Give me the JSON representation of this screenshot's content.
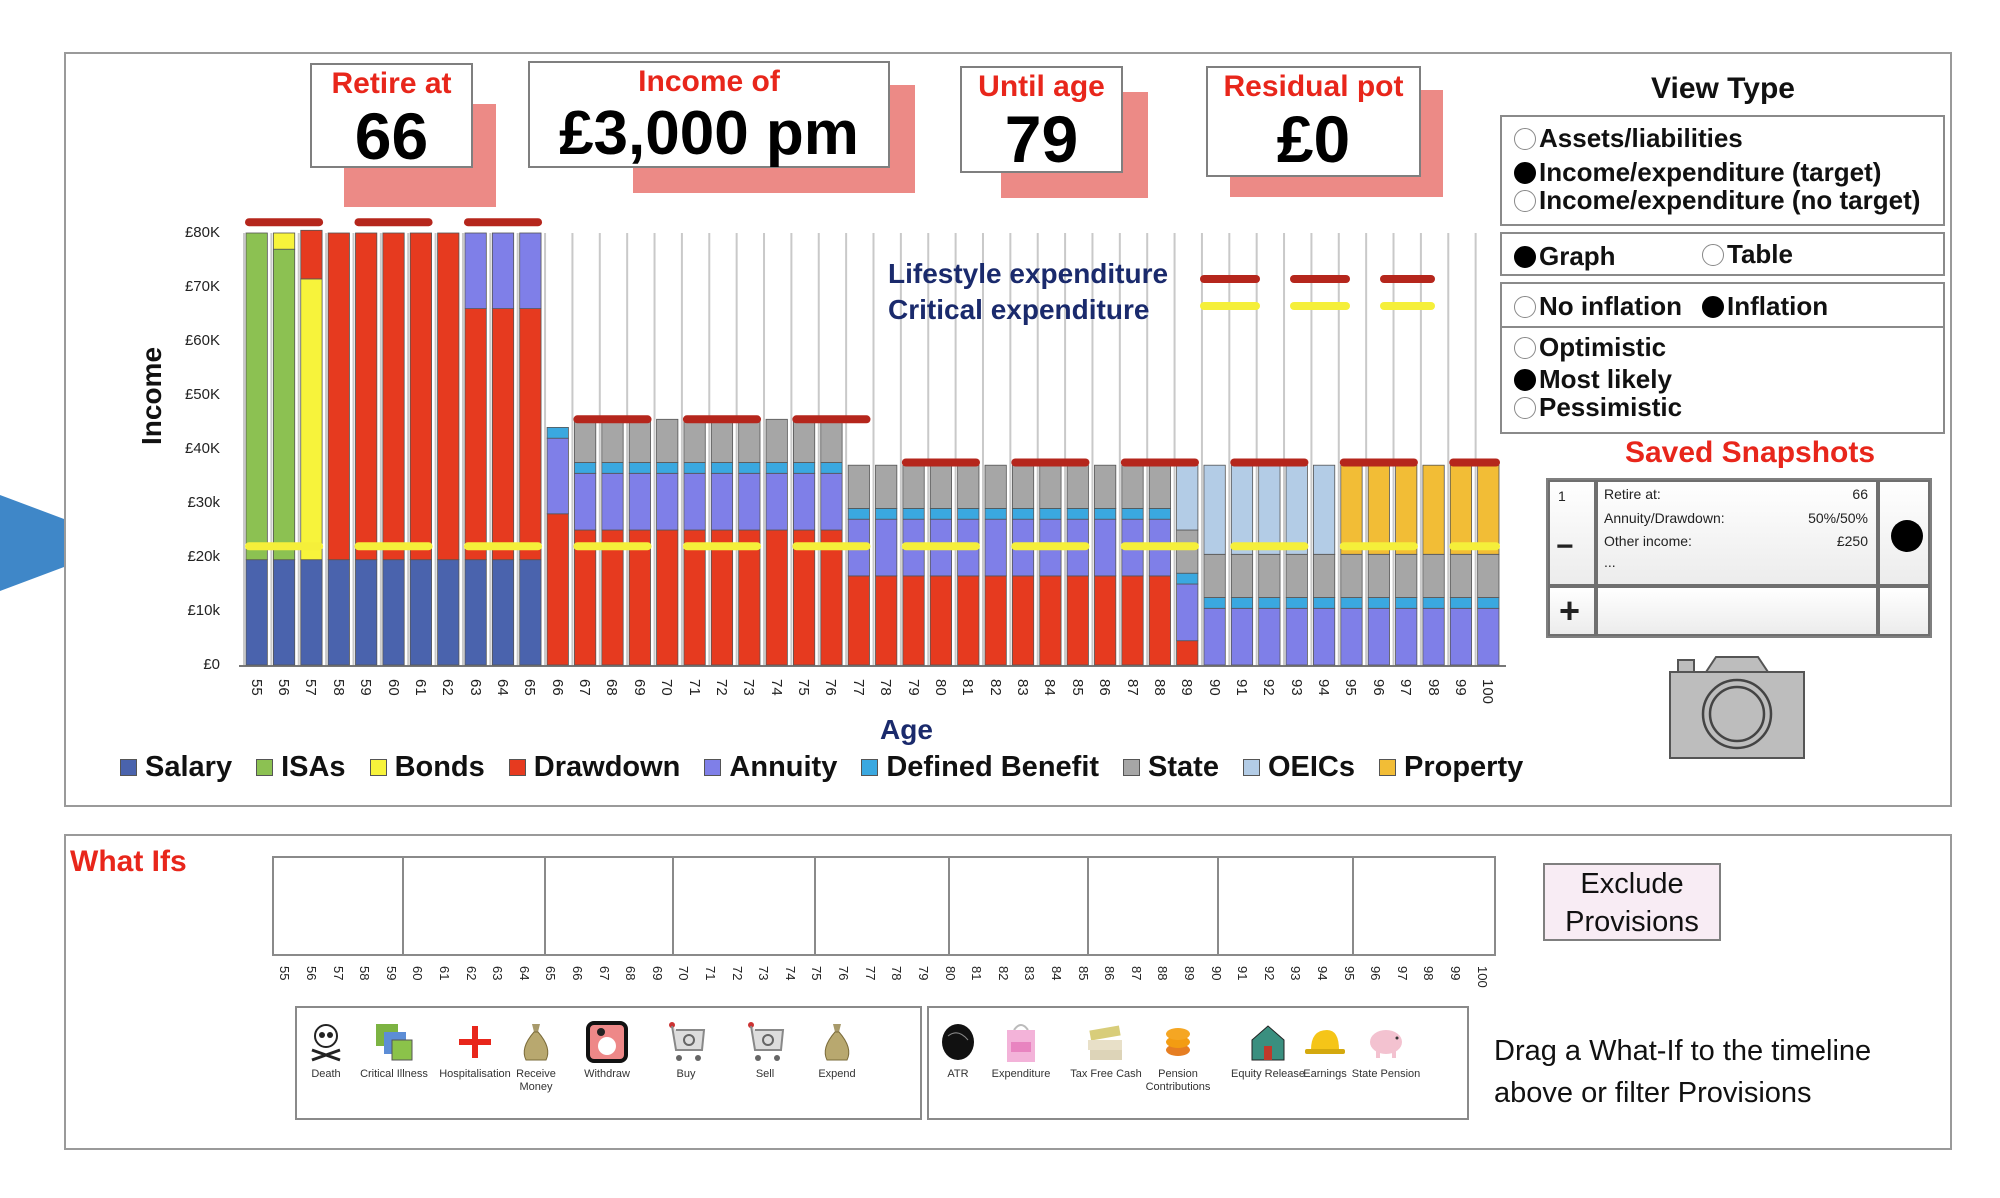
{
  "indicator_arrow": "pointer-arrow",
  "stats": {
    "retire_at": {
      "label": "Retire at",
      "value": "66"
    },
    "income_of": {
      "label": "Income of",
      "value": "£3,000 pm"
    },
    "until_age": {
      "label": "Until age",
      "value": "79"
    },
    "residual_pot": {
      "label": "Residual pot",
      "value": "£0"
    }
  },
  "view_type": {
    "title": "View Type",
    "mode": [
      {
        "label": "Assets/liabilities",
        "selected": false
      },
      {
        "label": "Income/expenditure (target)",
        "selected": true
      },
      {
        "label": "Income/expenditure (no target)",
        "selected": false
      }
    ],
    "display": [
      {
        "label": "Graph",
        "selected": true
      },
      {
        "label": "Table",
        "selected": false
      }
    ],
    "inflation": [
      {
        "label": "No inflation",
        "selected": false
      },
      {
        "label": "Inflation",
        "selected": true
      }
    ],
    "scenario": [
      {
        "label": "Optimistic",
        "selected": false
      },
      {
        "label": "Most likely",
        "selected": true
      },
      {
        "label": "Pessimistic",
        "selected": false
      }
    ]
  },
  "snapshots": {
    "title": "Saved Snapshots",
    "items": [
      {
        "index": "1",
        "remove_label": "−",
        "rows": [
          {
            "key": "Retire at:",
            "value": "66"
          },
          {
            "key": "Annuity/Drawdown:",
            "value": "50%/50%"
          },
          {
            "key": "Other income:",
            "value": "£250"
          }
        ],
        "more": "...",
        "selected": true
      }
    ],
    "add_label": "+",
    "camera_icon": "camera-icon"
  },
  "expenditure_legend": {
    "lifestyle": {
      "label": "Lifestyle expenditure",
      "color": "#b5261c"
    },
    "critical": {
      "label": "Critical expenditure",
      "color": "#f5ef3a"
    }
  },
  "chart_data": {
    "type": "bar",
    "stacked": true,
    "title": "",
    "xlabel": "Age",
    "ylabel": "Income",
    "ylim": [
      0,
      80000
    ],
    "yticks": [
      "£0",
      "£10k",
      "£20k",
      "£30k",
      "£40K",
      "£50K",
      "£60K",
      "£70K",
      "£80K"
    ],
    "categories": [
      "55",
      "56",
      "57",
      "58",
      "59",
      "60",
      "61",
      "62",
      "63",
      "64",
      "65",
      "66",
      "67",
      "68",
      "69",
      "70",
      "71",
      "72",
      "73",
      "74",
      "75",
      "76",
      "77",
      "78",
      "79",
      "80",
      "81",
      "82",
      "83",
      "84",
      "85",
      "86",
      "87",
      "88",
      "89",
      "90",
      "91",
      "92",
      "93",
      "94",
      "95",
      "96",
      "97",
      "98",
      "99",
      "100"
    ],
    "series": [
      {
        "name": "Salary",
        "color": "#4a63ad",
        "values": [
          19500,
          19500,
          19500,
          19500,
          19500,
          19500,
          19500,
          19500,
          19500,
          19500,
          19500,
          0,
          0,
          0,
          0,
          0,
          0,
          0,
          0,
          0,
          0,
          0,
          0,
          0,
          0,
          0,
          0,
          0,
          0,
          0,
          0,
          0,
          0,
          0,
          0,
          0,
          0,
          0,
          0,
          0,
          0,
          0,
          0,
          0,
          0,
          0
        ]
      },
      {
        "name": "ISAs",
        "color": "#8cc152",
        "values": [
          60500,
          57500,
          0,
          0,
          0,
          0,
          0,
          0,
          0,
          0,
          0,
          0,
          0,
          0,
          0,
          0,
          0,
          0,
          0,
          0,
          0,
          0,
          0,
          0,
          0,
          0,
          0,
          0,
          0,
          0,
          0,
          0,
          0,
          0,
          0,
          0,
          0,
          0,
          0,
          0,
          0,
          0,
          0,
          0,
          0,
          0
        ]
      },
      {
        "name": "Bonds",
        "color": "#f7f33b",
        "values": [
          0,
          3000,
          52000,
          0,
          0,
          0,
          0,
          0,
          0,
          0,
          0,
          0,
          0,
          0,
          0,
          0,
          0,
          0,
          0,
          0,
          0,
          0,
          0,
          0,
          0,
          0,
          0,
          0,
          0,
          0,
          0,
          0,
          0,
          0,
          0,
          0,
          0,
          0,
          0,
          0,
          0,
          0,
          0,
          0,
          0,
          0
        ]
      },
      {
        "name": "Drawdown",
        "color": "#e63a1f",
        "values": [
          0,
          0,
          9000,
          60500,
          60500,
          60500,
          60500,
          60500,
          46500,
          46500,
          46500,
          28000,
          25000,
          25000,
          25000,
          25000,
          25000,
          25000,
          25000,
          25000,
          25000,
          25000,
          16500,
          16500,
          16500,
          16500,
          16500,
          16500,
          16500,
          16500,
          16500,
          16500,
          16500,
          16500,
          4500,
          0,
          0,
          0,
          0,
          0,
          0,
          0,
          0,
          0,
          0,
          0
        ]
      },
      {
        "name": "Annuity",
        "color": "#7f7fe8",
        "values": [
          0,
          0,
          0,
          0,
          0,
          0,
          0,
          0,
          14000,
          14000,
          14000,
          14000,
          10500,
          10500,
          10500,
          10500,
          10500,
          10500,
          10500,
          10500,
          10500,
          10500,
          10500,
          10500,
          10500,
          10500,
          10500,
          10500,
          10500,
          10500,
          10500,
          10500,
          10500,
          10500,
          10500,
          10500,
          10500,
          10500,
          10500,
          10500,
          10500,
          10500,
          10500,
          10500,
          10500,
          10500
        ]
      },
      {
        "name": "Defined Benefit",
        "color": "#3aa8e0",
        "values": [
          0,
          0,
          0,
          0,
          0,
          0,
          0,
          0,
          0,
          0,
          0,
          2000,
          2000,
          2000,
          2000,
          2000,
          2000,
          2000,
          2000,
          2000,
          2000,
          2000,
          2000,
          2000,
          2000,
          2000,
          2000,
          2000,
          2000,
          2000,
          2000,
          2000,
          2000,
          2000,
          2000,
          2000,
          2000,
          2000,
          2000,
          2000,
          2000,
          2000,
          2000,
          2000,
          2000,
          2000
        ]
      },
      {
        "name": "State",
        "color": "#a6a6a6",
        "values": [
          0,
          0,
          0,
          0,
          0,
          0,
          0,
          0,
          0,
          0,
          0,
          0,
          8000,
          8000,
          8000,
          8000,
          8000,
          8000,
          8000,
          8000,
          8000,
          8000,
          8000,
          8000,
          8000,
          8000,
          8000,
          8000,
          8000,
          8000,
          8000,
          8000,
          8000,
          8000,
          8000,
          8000,
          8000,
          8000,
          8000,
          8000,
          8000,
          8000,
          8000,
          8000,
          8000,
          8000
        ]
      },
      {
        "name": "OEICs",
        "color": "#b3cce6",
        "values": [
          0,
          0,
          0,
          0,
          0,
          0,
          0,
          0,
          0,
          0,
          0,
          0,
          0,
          0,
          0,
          0,
          0,
          0,
          0,
          0,
          0,
          0,
          0,
          0,
          0,
          0,
          0,
          0,
          0,
          0,
          0,
          0,
          0,
          0,
          12000,
          16500,
          16500,
          16500,
          16500,
          16500,
          0,
          0,
          0,
          0,
          0,
          0
        ]
      },
      {
        "name": "Property",
        "color": "#f2bd36",
        "values": [
          0,
          0,
          0,
          0,
          0,
          0,
          0,
          0,
          0,
          0,
          0,
          0,
          0,
          0,
          0,
          0,
          0,
          0,
          0,
          0,
          0,
          0,
          0,
          0,
          0,
          0,
          0,
          0,
          0,
          0,
          0,
          0,
          0,
          0,
          0,
          0,
          0,
          0,
          0,
          0,
          16500,
          16500,
          16500,
          16500,
          16500,
          16500
        ]
      }
    ],
    "lines": [
      {
        "name": "Lifestyle expenditure",
        "color": "#b5261c",
        "style": "dashed",
        "values": [
          82000,
          82000,
          82000,
          82000,
          82000,
          82000,
          82000,
          82000,
          82000,
          82000,
          82000,
          45500,
          45500,
          45500,
          45500,
          45500,
          45500,
          45500,
          45500,
          45500,
          45500,
          45500,
          37500,
          37500,
          37500,
          37500,
          37500,
          37500,
          37500,
          37500,
          37500,
          37500,
          37500,
          37500,
          37500,
          37500,
          37500,
          37500,
          37500,
          37500,
          37500,
          37500,
          37500,
          37500,
          37500,
          37500
        ]
      },
      {
        "name": "Critical expenditure",
        "color": "#f5ef3a",
        "style": "dashed",
        "values": [
          22000,
          22000,
          22000,
          22000,
          22000,
          22000,
          22000,
          22000,
          22000,
          22000,
          22000,
          22000,
          22000,
          22000,
          22000,
          22000,
          22000,
          22000,
          22000,
          22000,
          22000,
          22000,
          22000,
          22000,
          22000,
          22000,
          22000,
          22000,
          22000,
          22000,
          22000,
          22000,
          22000,
          22000,
          22000,
          22000,
          22000,
          22000,
          22000,
          22000,
          22000,
          22000,
          22000,
          22000,
          22000,
          22000
        ]
      }
    ],
    "legend": [
      "Salary",
      "ISAs",
      "Bonds",
      "Drawdown",
      "Annuity",
      "Defined Benefit",
      "State",
      "OEICs",
      "Property"
    ],
    "legend_position": "bottom",
    "grid": false
  },
  "what_ifs": {
    "title": "What Ifs",
    "timeline_ages": [
      "55",
      "56",
      "57",
      "58",
      "59",
      "60",
      "61",
      "62",
      "63",
      "64",
      "65",
      "66",
      "67",
      "68",
      "69",
      "70",
      "71",
      "72",
      "73",
      "74",
      "75",
      "76",
      "77",
      "78",
      "79",
      "80",
      "81",
      "82",
      "83",
      "84",
      "85",
      "86",
      "87",
      "88",
      "89",
      "90",
      "91",
      "92",
      "93",
      "94",
      "95",
      "96",
      "97",
      "98",
      "99",
      "100"
    ],
    "events": [
      {
        "label": "Death",
        "icon": "skull-crossbones-icon"
      },
      {
        "label": "Critical Illness",
        "icon": "critical-illness-icon"
      },
      {
        "label": "Hospitalisation",
        "icon": "red-cross-icon"
      },
      {
        "label": "Receive Money",
        "icon": "money-bag-icon"
      },
      {
        "label": "Withdraw",
        "icon": "withdraw-icon"
      },
      {
        "label": "Buy",
        "icon": "shopping-cart-icon"
      },
      {
        "label": "Sell",
        "icon": "shopping-cart-icon"
      },
      {
        "label": "Expend",
        "icon": "money-bag-icon"
      }
    ],
    "provisions": [
      {
        "label": "ATR",
        "icon": "atr-icon"
      },
      {
        "label": "Expenditure",
        "icon": "shopping-bag-icon"
      },
      {
        "label": "Tax Free Cash",
        "icon": "cash-stack-icon"
      },
      {
        "label": "Pension Contributions",
        "icon": "coins-icon"
      },
      {
        "label": "Equity Release",
        "icon": "house-icon"
      },
      {
        "label": "Earnings",
        "icon": "hard-hat-icon"
      },
      {
        "label": "State Pension",
        "icon": "piggy-bank-icon"
      }
    ],
    "exclude_button": "Exclude Provisions",
    "hint": "Drag a What-If to the timeline above or filter Provisions"
  }
}
